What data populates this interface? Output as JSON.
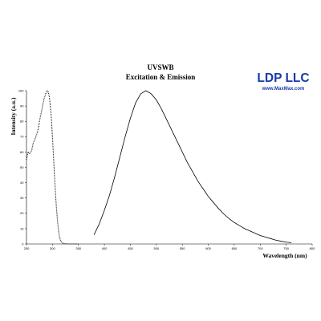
{
  "chart_data": {
    "type": "line",
    "title": [
      "UVSWB",
      "Excitation & Emission"
    ],
    "xlabel": "Wavelength (nm)",
    "ylabel": "Intensity (a.u.)",
    "xlim": [
      250,
      800
    ],
    "ylim": [
      0,
      100
    ],
    "x_ticks": [
      250,
      300,
      350,
      400,
      450,
      500,
      550,
      600,
      650,
      700,
      750,
      800
    ],
    "y_ticks": [
      0,
      10,
      20,
      30,
      40,
      50,
      60,
      70,
      80,
      90,
      100
    ],
    "grid": false,
    "legend": "none",
    "series": [
      {
        "style": "dotted",
        "color": "#000000",
        "x": [
          250,
          253,
          256,
          260,
          263,
          266,
          269,
          272,
          275,
          278,
          281,
          284,
          287,
          290,
          292,
          294,
          296,
          298,
          300,
          302,
          304,
          306,
          308,
          310,
          312,
          314,
          316,
          318,
          320,
          322,
          325,
          330,
          340,
          350
        ],
        "y": [
          55,
          60,
          59,
          61,
          66,
          68,
          71,
          74,
          80,
          85,
          90,
          95,
          98,
          100,
          99,
          96,
          90,
          82,
          70,
          57,
          44,
          32,
          22,
          14,
          8,
          4,
          2,
          1,
          0.5,
          0.3,
          0.1,
          0,
          0,
          0
        ]
      },
      {
        "style": "solid",
        "color": "#000000",
        "x": [
          380,
          390,
          400,
          410,
          420,
          430,
          440,
          450,
          460,
          470,
          480,
          490,
          500,
          510,
          520,
          530,
          540,
          550,
          560,
          570,
          580,
          590,
          600,
          610,
          620,
          630,
          640,
          650,
          660,
          670,
          680,
          690,
          700,
          710,
          720,
          730,
          740,
          750,
          760
        ],
        "y": [
          6,
          13,
          22,
          32,
          44,
          57,
          70,
          82,
          92,
          98,
          100,
          98,
          94,
          88,
          81,
          74,
          67,
          60,
          53,
          47,
          41,
          36,
          31,
          27,
          23,
          19.5,
          16.5,
          14,
          12,
          10,
          8.5,
          7,
          5.5,
          4.5,
          3.5,
          2.5,
          1.8,
          1.2,
          0.8
        ]
      }
    ]
  },
  "logo": {
    "name": "LDP LLC",
    "url": "www.MaxMax.com"
  }
}
